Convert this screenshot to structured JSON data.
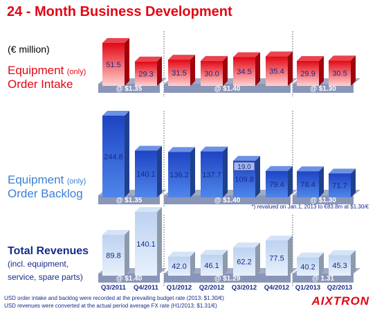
{
  "title": "24 - Month Business Development",
  "unit_label": "(€ million)",
  "sections": {
    "order_intake": {
      "name": "Equipment",
      "qualifier": "(only)",
      "name2": "Order Intake"
    },
    "order_backlog": {
      "name": "Equipment",
      "qualifier": "(only)",
      "name2": "Order Backlog"
    },
    "revenues": {
      "name": "Total Revenues",
      "sub1": "(incl. equipment,",
      "sub2": "service, spare parts)"
    }
  },
  "footnotes": {
    "backlog_note": "*) revalued on Jan.1, 2013 to €83.8m at $1.30/€",
    "line1": "USD order intake and backlog were recorded at the prevailing budget rate (2013: $1.30/€)",
    "line2": "USD revenues were converted at the actual period average FX rate (H1/2013: $1.31/€)"
  },
  "logo_text": "AIXTRON",
  "colors": {
    "red": "#e30613",
    "blue": "#2f62d8",
    "light_blue": "#c9dcf4",
    "navy": "#152a8a",
    "band": "#8a96b8"
  },
  "chart_data": [
    {
      "type": "bar",
      "title": "Equipment (only) Order Intake",
      "categories": [
        "Q3/2011",
        "Q4/2011",
        "Q1/2012",
        "Q2/2012",
        "Q3/2012",
        "Q4/2012",
        "Q1/2013",
        "Q2/2013"
      ],
      "values": [
        51.5,
        29.3,
        31.5,
        30.0,
        34.5,
        35.4,
        29.9,
        30.5
      ],
      "labels": [
        "51.5",
        "29.3",
        "31.5",
        "30.0",
        "34.5",
        "35.4",
        "29.9",
        "30.5"
      ],
      "fx_bands": [
        {
          "label": "@ $1.35",
          "from": 0,
          "to": 1
        },
        {
          "label": "@ $1.40",
          "from": 2,
          "to": 5
        },
        {
          "label": "@ $1.30",
          "from": 6,
          "to": 7
        }
      ]
    },
    {
      "type": "bar",
      "title": "Equipment (only) Order Backlog",
      "categories": [
        "Q3/2011",
        "Q4/2011",
        "Q1/2012",
        "Q2/2012",
        "Q3/2012",
        "Q4/2012",
        "Q1/2013",
        "Q2/2013"
      ],
      "values": [
        244.8,
        140.1,
        136.2,
        137.7,
        109.8,
        79.4,
        78.4,
        71.7
      ],
      "labels": [
        "244.8",
        "140.1",
        "136.2",
        "137.7",
        "109.8",
        "79.4",
        "78.4",
        "71.7"
      ],
      "annotations": [
        {
          "index": 4,
          "text": "19.0"
        }
      ],
      "fx_bands": [
        {
          "label": "@ $1.35",
          "from": 0,
          "to": 1
        },
        {
          "label": "@ $1.40",
          "from": 2,
          "to": 5
        },
        {
          "label": "@ $1.30",
          "from": 6,
          "to": 7
        }
      ]
    },
    {
      "type": "bar",
      "title": "Total Revenues (incl. equipment, service, spare parts)",
      "categories": [
        "Q3/2011",
        "Q4/2011",
        "Q1/2012",
        "Q2/2012",
        "Q3/2012",
        "Q4/2012",
        "Q1/2013",
        "Q2/2013"
      ],
      "values": [
        89.8,
        140.1,
        42.0,
        46.1,
        62.2,
        77.5,
        40.2,
        45.3
      ],
      "labels": [
        "89.8",
        "140.1",
        "42.0",
        "46.1",
        "62.2",
        "77.5",
        "40.2",
        "45.3"
      ],
      "fx_bands": [
        {
          "label": "@ $1.40",
          "from": 0,
          "to": 1
        },
        {
          "label": "@ $1.29",
          "from": 2,
          "to": 5
        },
        {
          "label": "@ 1.31",
          "from": 6,
          "to": 7
        }
      ]
    }
  ]
}
